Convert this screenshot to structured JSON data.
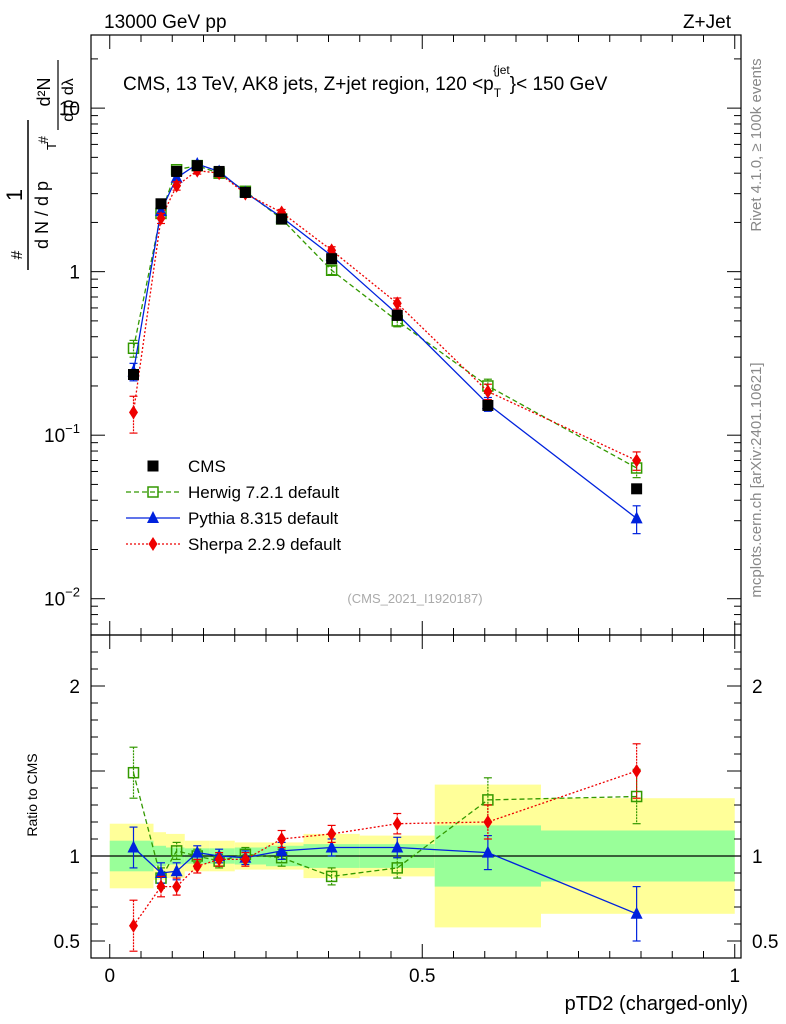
{
  "header": {
    "left": "13000 GeV pp",
    "right": "Z+Jet"
  },
  "side_labels": {
    "rivet": "Rivet 4.1.0, ≥ 100k events",
    "mcplots": "mcplots.cern.ch [arXiv:2401.10621]"
  },
  "chart_data": [
    {
      "type": "scatter",
      "panel": "main",
      "title": "CMS, 13 TeV, AK8 jets, Z+jet region, 120 <p_T^{jet}}< 150 GeV",
      "title_parts": {
        "lead": "CMS, 13 TeV, AK8 jets, Z+jet region, 120 <p",
        "sub": "T",
        "sup": "{jet",
        "tail": "}< 150 GeV"
      },
      "ylabel": "1/(dN/dpT) d²N/(dpT dλ)",
      "yscale": "log",
      "ylim": [
        0.006,
        28
      ],
      "xlim": [
        -0.03,
        1.01
      ],
      "ytick_labels": [
        "10",
        "1",
        "10^-1",
        "10^-2"
      ],
      "watermark": "(CMS_2021_I1920187)",
      "bins": [
        [
          0.0,
          0.07
        ],
        [
          0.07,
          0.09
        ],
        [
          0.09,
          0.12
        ],
        [
          0.12,
          0.16
        ],
        [
          0.16,
          0.2
        ],
        [
          0.2,
          0.25
        ],
        [
          0.25,
          0.31
        ],
        [
          0.31,
          0.4
        ],
        [
          0.4,
          0.52
        ],
        [
          0.52,
          0.69
        ],
        [
          0.69,
          1.0
        ]
      ],
      "x": [
        0.038,
        0.082,
        0.107,
        0.14,
        0.175,
        0.217,
        0.275,
        0.355,
        0.46,
        0.605,
        0.843
      ],
      "series": [
        {
          "name": "CMS",
          "style": "data",
          "color": "#000000",
          "values": [
            0.235,
            2.6,
            4.1,
            4.45,
            4.1,
            3.05,
            2.1,
            1.2,
            0.54,
            0.152,
            0.047
          ]
        },
        {
          "name": "Herwig 7.2.1 default",
          "style": "open-square",
          "color": "#339900",
          "values": [
            0.34,
            2.27,
            4.2,
            4.45,
            4.0,
            3.1,
            2.1,
            1.02,
            0.5,
            0.2,
            0.063
          ],
          "errors": [
            0.04,
            0.15,
            0.2,
            0.2,
            0.2,
            0.15,
            0.1,
            0.06,
            0.04,
            0.02,
            0.008
          ]
        },
        {
          "name": "Pythia 8.315 default",
          "style": "filled-triangle",
          "color": "#0022dd",
          "values": [
            0.245,
            2.35,
            3.75,
            4.55,
            4.1,
            3.05,
            2.15,
            1.25,
            0.55,
            0.155,
            0.031
          ],
          "errors": [
            0.03,
            0.15,
            0.2,
            0.2,
            0.2,
            0.15,
            0.1,
            0.06,
            0.04,
            0.015,
            0.006
          ]
        },
        {
          "name": "Sherpa 2.2.9 default",
          "style": "filled-diamond",
          "color": "#ee0000",
          "values": [
            0.138,
            2.12,
            3.35,
            4.15,
            4.0,
            3.0,
            2.3,
            1.35,
            0.64,
            0.185,
            0.07
          ],
          "errors": [
            0.035,
            0.15,
            0.2,
            0.2,
            0.2,
            0.15,
            0.1,
            0.07,
            0.05,
            0.02,
            0.009
          ]
        }
      ]
    },
    {
      "type": "scatter",
      "panel": "ratio",
      "xlabel": "pTD2 (charged-only)",
      "ylabel": "Ratio to CMS",
      "ylim": [
        0.4,
        2.3
      ],
      "xlim": [
        -0.03,
        1.01
      ],
      "ytick_labels": [
        "2",
        "1",
        "0.5"
      ],
      "xtick_labels": [
        "0",
        "0.5",
        "1"
      ],
      "ref_line": 1,
      "bands": {
        "inner_half_width": [
          0.09,
          0.06,
          0.05,
          0.045,
          0.045,
          0.05,
          0.06,
          0.07,
          0.07,
          0.18,
          0.15
        ],
        "outer_half_width": [
          0.19,
          0.14,
          0.13,
          0.09,
          0.09,
          0.08,
          0.08,
          0.13,
          0.12,
          0.42,
          0.34
        ],
        "inner_color": "#99ff99",
        "outer_color": "#ffff99"
      },
      "series": [
        {
          "name": "Herwig 7.2.1 default",
          "style": "open-square",
          "color": "#339900",
          "values": [
            1.49,
            0.87,
            1.03,
            1.0,
            0.97,
            1.01,
            0.99,
            0.88,
            0.93,
            1.33,
            1.35
          ],
          "errors": [
            0.15,
            0.06,
            0.05,
            0.04,
            0.04,
            0.04,
            0.05,
            0.05,
            0.06,
            0.13,
            0.16
          ]
        },
        {
          "name": "Pythia 8.315 default",
          "style": "filled-triangle",
          "color": "#0022dd",
          "values": [
            1.05,
            0.9,
            0.91,
            1.02,
            1.0,
            0.99,
            1.03,
            1.05,
            1.05,
            1.02,
            0.66
          ],
          "errors": [
            0.12,
            0.06,
            0.05,
            0.04,
            0.04,
            0.04,
            0.05,
            0.05,
            0.06,
            0.1,
            0.16
          ]
        },
        {
          "name": "Sherpa 2.2.9 default",
          "style": "filled-diamond",
          "color": "#ee0000",
          "values": [
            0.59,
            0.82,
            0.82,
            0.94,
            0.98,
            0.98,
            1.1,
            1.13,
            1.19,
            1.2,
            1.5
          ],
          "errors": [
            0.15,
            0.06,
            0.05,
            0.04,
            0.04,
            0.04,
            0.05,
            0.05,
            0.06,
            0.1,
            0.16
          ]
        }
      ]
    }
  ]
}
